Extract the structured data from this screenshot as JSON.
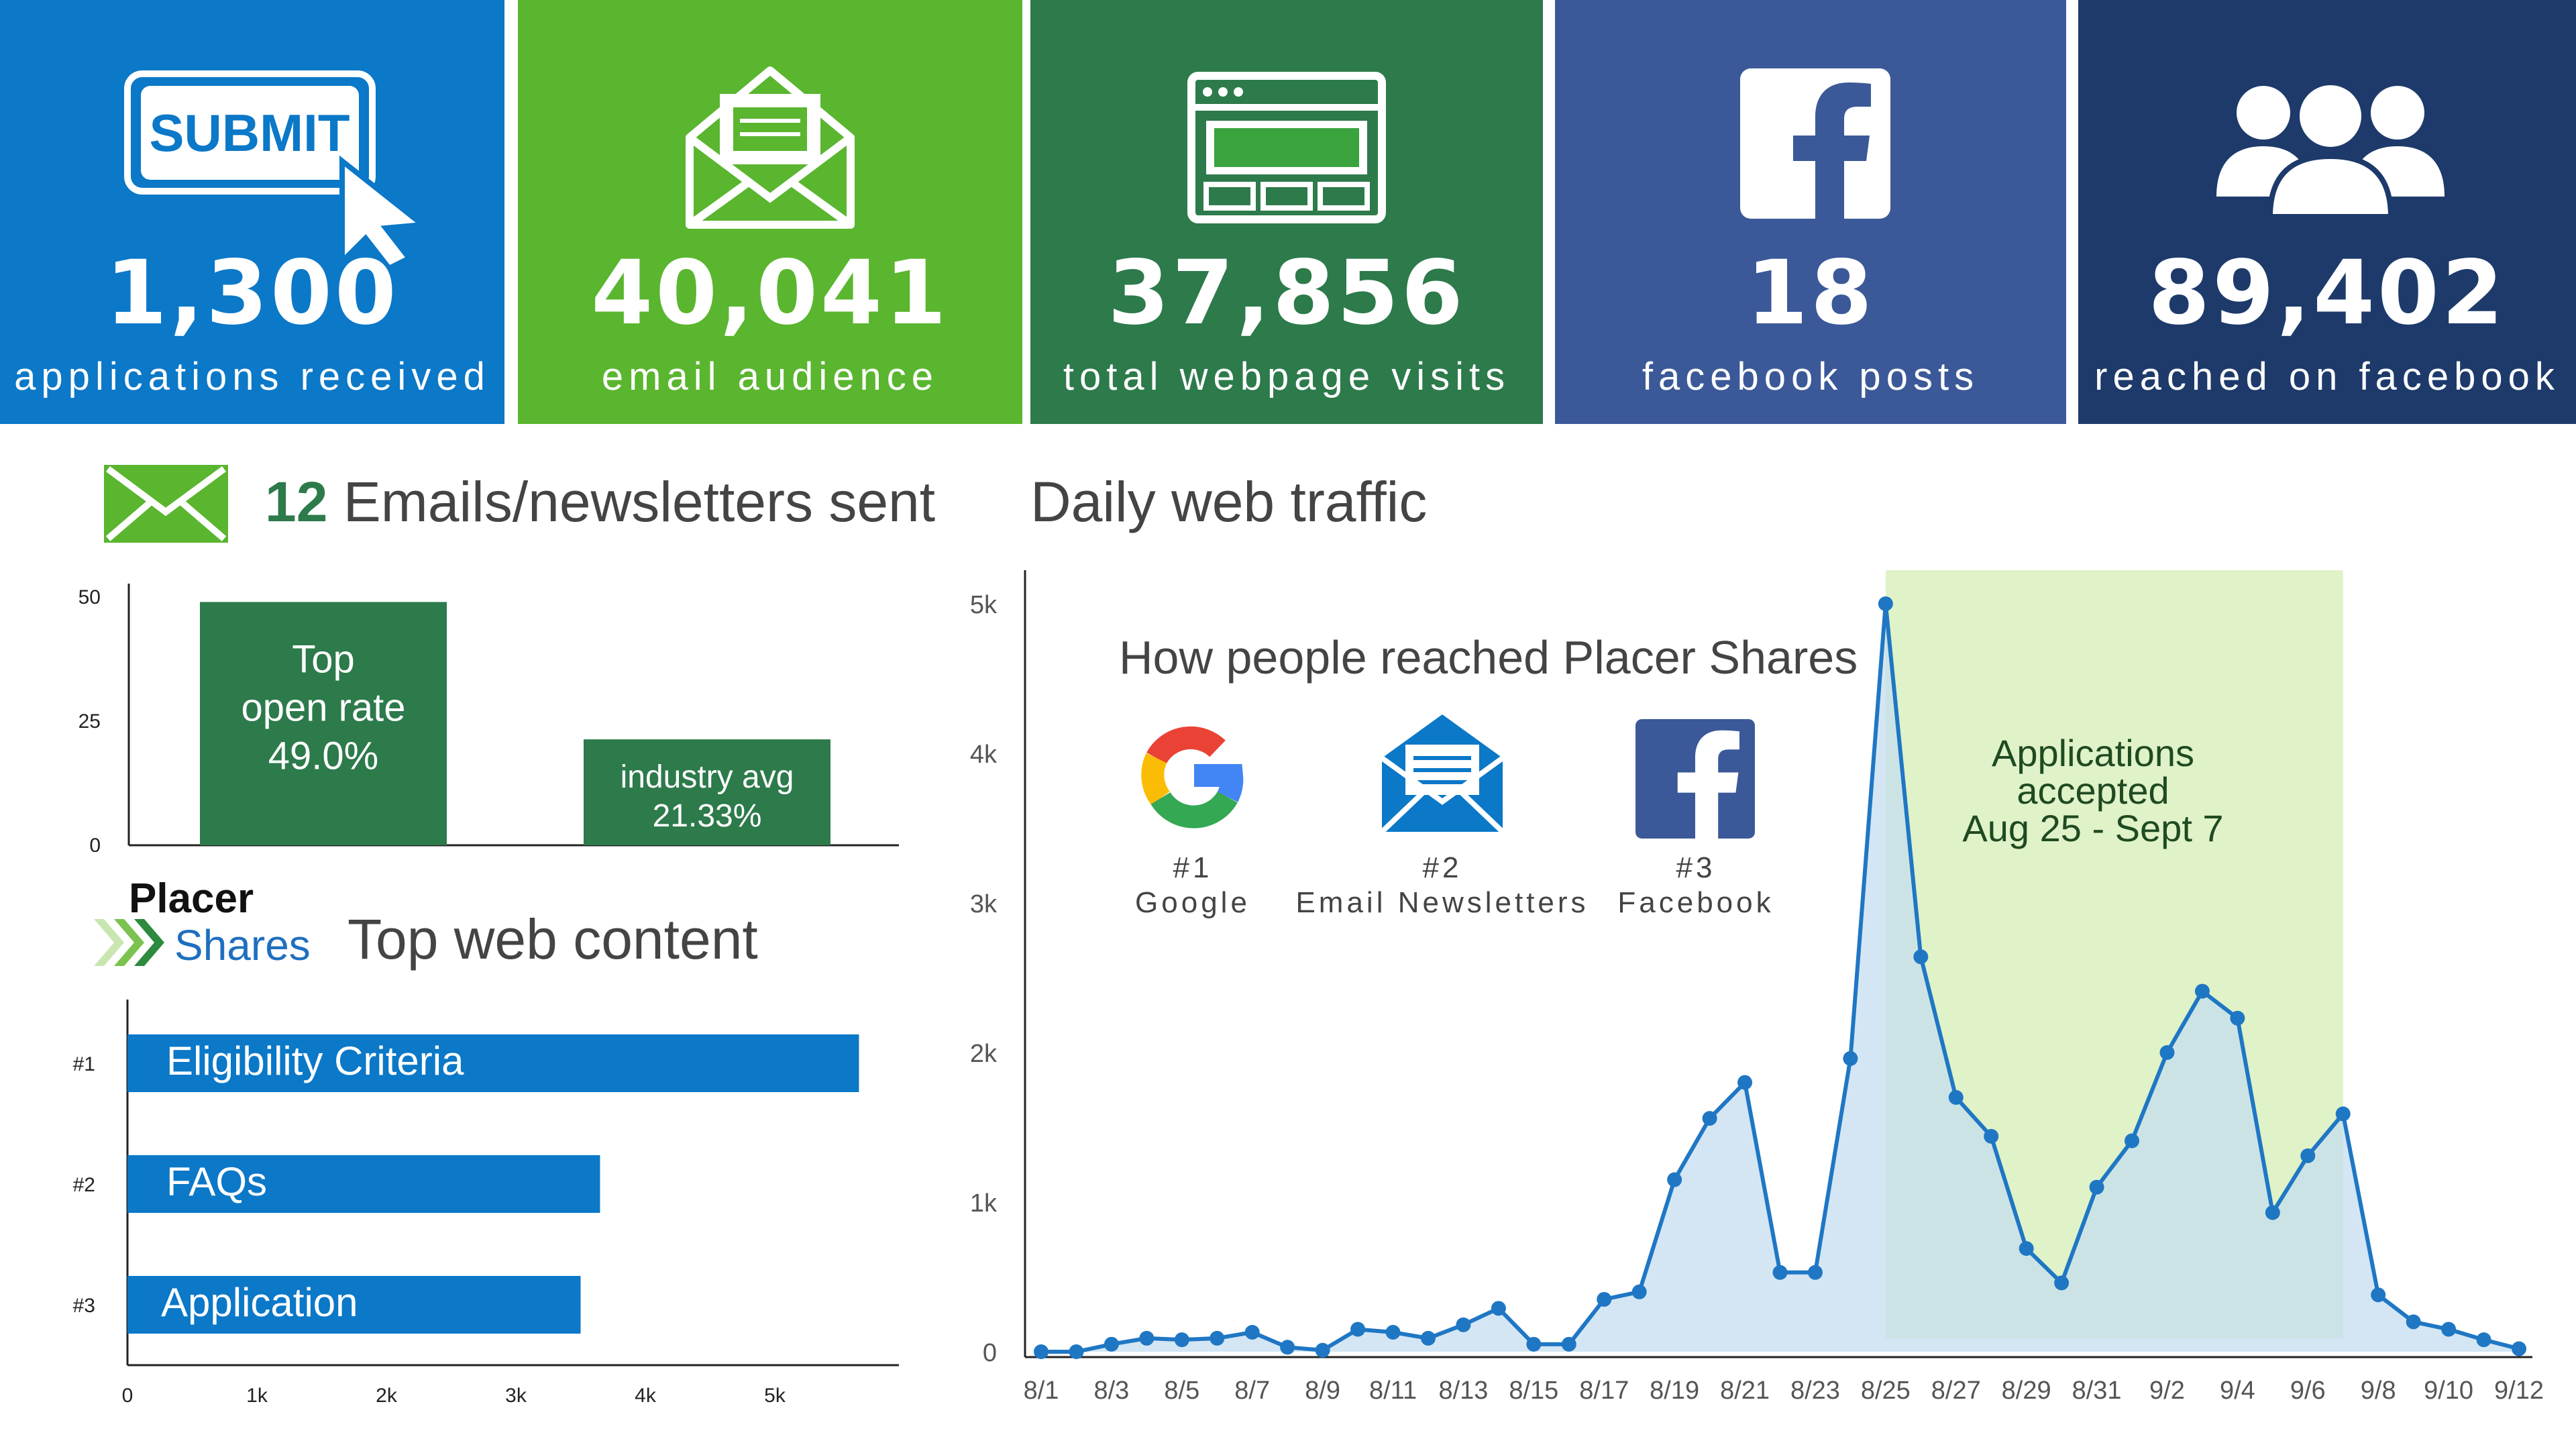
{
  "tiles": [
    {
      "value": "1,300",
      "label": "applications received",
      "color": "#0b78c8",
      "icon": "submit-click-icon",
      "icon_text": "SUBMIT"
    },
    {
      "value": "40,041",
      "label": "email audience",
      "color": "#5ab52f",
      "icon": "open-envelope-icon"
    },
    {
      "value": "37,856",
      "label": "total webpage visits",
      "color": "#2d7a4b",
      "icon": "browser-window-icon"
    },
    {
      "value": "18",
      "label": "facebook posts",
      "color": "#3b5998",
      "icon": "facebook-icon"
    },
    {
      "value": "89,402",
      "label": "reached on facebook",
      "color": "#1d3a6b",
      "icon": "people-group-icon"
    }
  ],
  "emails_section": {
    "count": "12",
    "title": "Emails/newsletters sent",
    "icon": "envelope-icon"
  },
  "web_content_section": {
    "logo_line1": "Placer",
    "logo_line2": "Shares",
    "title": "Top web content"
  },
  "traffic_section": {
    "title": "Daily web traffic"
  },
  "reach_box": {
    "title": "How people reached Placer Shares",
    "items": [
      {
        "rank": "#1",
        "name": "Google",
        "icon": "google-icon"
      },
      {
        "rank": "#2",
        "name": "Email Newsletters",
        "icon": "email-newsletter-icon"
      },
      {
        "rank": "#3",
        "name": "Facebook",
        "icon": "facebook-icon"
      }
    ]
  },
  "applications_note": {
    "line1": "Applications",
    "line2": "accepted",
    "line3": "Aug 25 - Sept 7"
  },
  "colors": {
    "bar_green": "#2d7a4b",
    "bar_blue": "#0b78c8",
    "line_blue": "#1f77c4",
    "area_fill": "#c6ddf0",
    "highlight": "#dff2c8",
    "accent_green": "#5ab52f"
  },
  "chart_data": [
    {
      "type": "bar",
      "categories": [
        "Top open rate",
        "industry avg"
      ],
      "values": [
        49.0,
        21.33
      ],
      "bar_labels": [
        [
          "Top",
          "open rate",
          "49.0%"
        ],
        [
          "industry avg",
          "21.33%"
        ]
      ],
      "ylim": [
        0,
        50
      ],
      "yticks": [
        "0",
        "25",
        "50"
      ]
    },
    {
      "type": "bar",
      "orientation": "horizontal",
      "categories": [
        "Eligibility Criteria",
        "FAQs",
        "Application"
      ],
      "ranks": [
        "#1",
        "#2",
        "#3"
      ],
      "values": [
        5650,
        3650,
        3500
      ],
      "xlim": [
        0,
        6000
      ],
      "xticks": [
        {
          "v": 0,
          "t": "0"
        },
        {
          "v": 1000,
          "t": "1k"
        },
        {
          "v": 2000,
          "t": "2k"
        },
        {
          "v": 3000,
          "t": "3k"
        },
        {
          "v": 4000,
          "t": "4k"
        },
        {
          "v": 5000,
          "t": "5k"
        }
      ]
    },
    {
      "type": "area",
      "x": [
        "8/1",
        "8/2",
        "8/3",
        "8/4",
        "8/5",
        "8/6",
        "8/7",
        "8/8",
        "8/9",
        "8/10",
        "8/11",
        "8/12",
        "8/13",
        "8/14",
        "8/15",
        "8/16",
        "8/17",
        "8/18",
        "8/19",
        "8/20",
        "8/21",
        "8/22",
        "8/23",
        "8/24",
        "8/25",
        "8/26",
        "8/27",
        "8/28",
        "8/29",
        "8/30",
        "8/31",
        "9/1",
        "9/2",
        "9/3",
        "9/4",
        "9/5",
        "9/6",
        "9/7",
        "9/8",
        "9/9",
        "9/10",
        "9/11",
        "9/12"
      ],
      "y": [
        0,
        0,
        50,
        90,
        80,
        90,
        130,
        30,
        10,
        150,
        130,
        90,
        180,
        290,
        50,
        50,
        350,
        400,
        1150,
        1560,
        1800,
        530,
        530,
        1960,
        5000,
        2640,
        1700,
        1440,
        690,
        460,
        1100,
        1410,
        2000,
        2410,
        2230,
        930,
        1310,
        1590,
        380,
        200,
        150,
        80,
        20
      ],
      "xtick_labels": [
        "8/1",
        "8/3",
        "8/5",
        "8/7",
        "8/9",
        "8/11",
        "8/13",
        "8/15",
        "8/17",
        "8/19",
        "8/21",
        "8/23",
        "8/25",
        "8/27",
        "8/29",
        "8/31",
        "9/2",
        "9/4",
        "9/6",
        "9/8",
        "9/10",
        "9/12"
      ],
      "ylim": [
        0,
        5200
      ],
      "yticks": [
        {
          "v": 0,
          "t": "0"
        },
        {
          "v": 1000,
          "t": "1k"
        },
        {
          "v": 2000,
          "t": "2k"
        },
        {
          "v": 3000,
          "t": "3k"
        },
        {
          "v": 4000,
          "t": "4k"
        },
        {
          "v": 5000,
          "t": "5k"
        }
      ],
      "highlight_range": [
        "8/25",
        "9/7"
      ]
    }
  ]
}
